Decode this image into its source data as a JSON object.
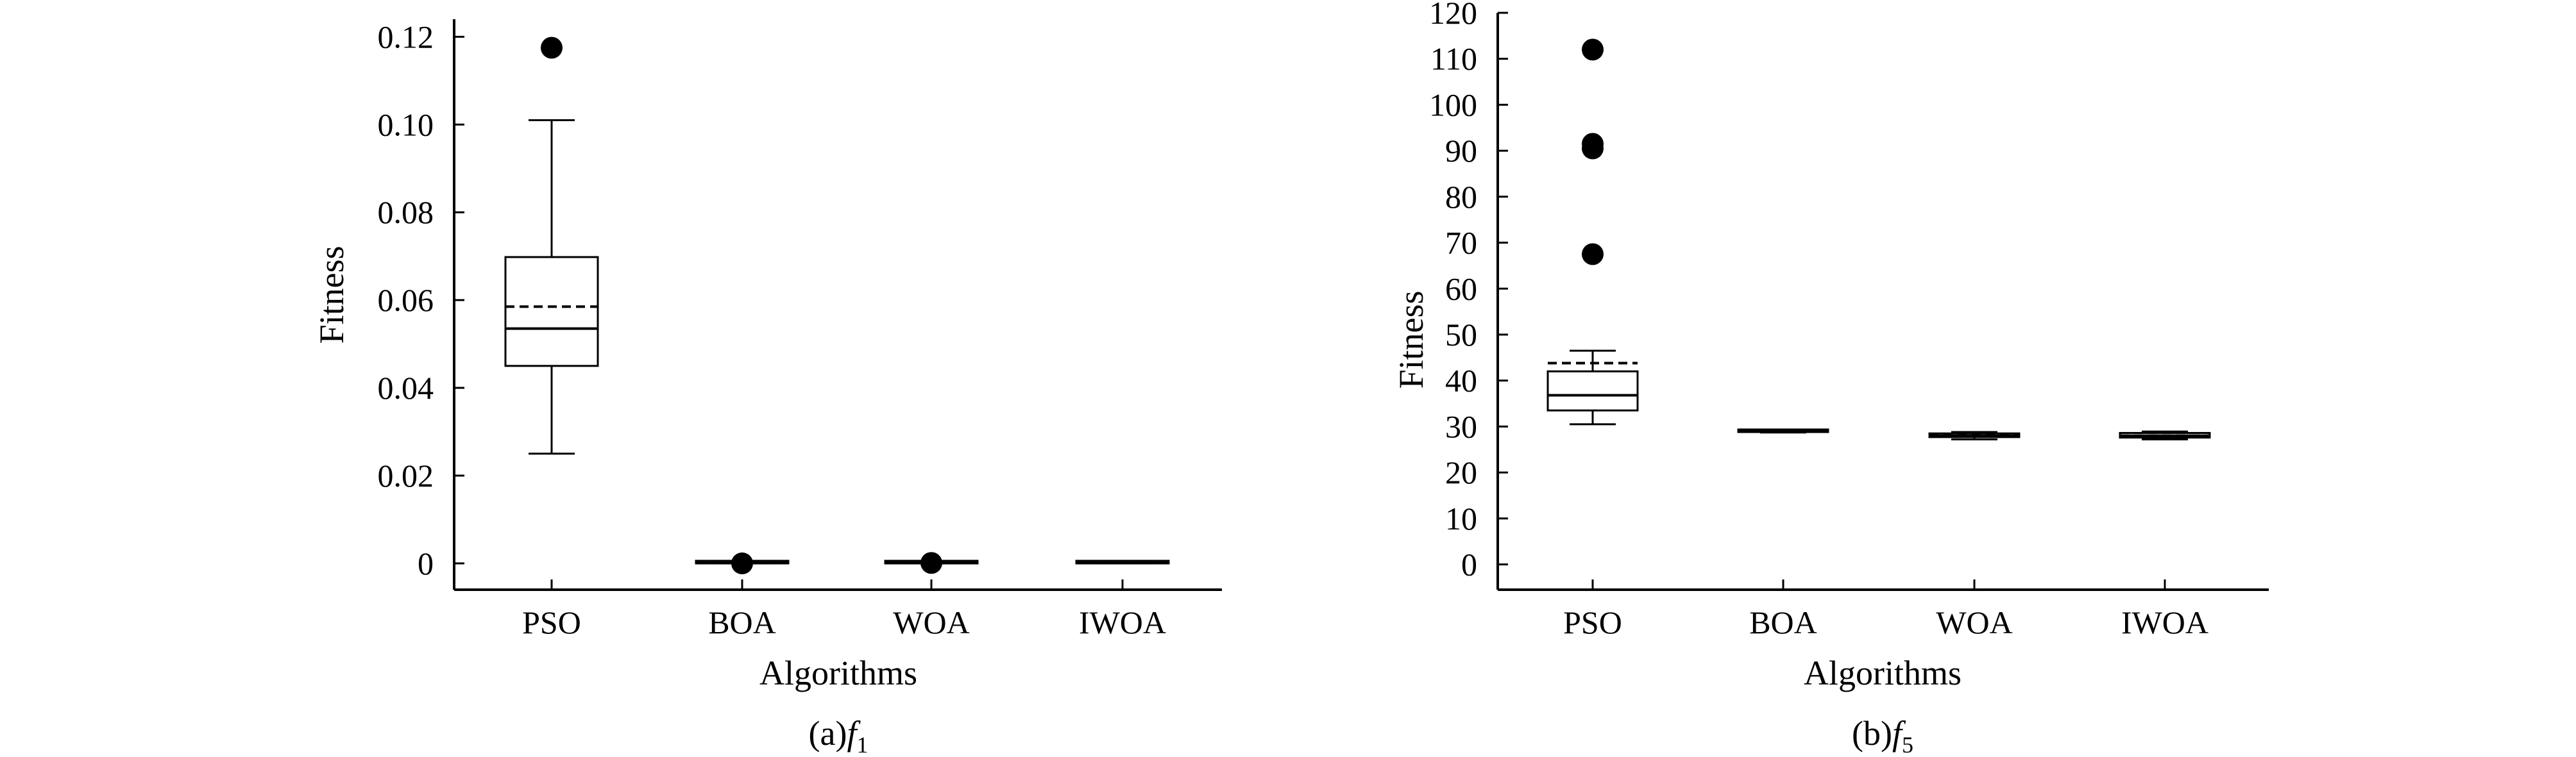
{
  "chart_data": [
    {
      "type": "box",
      "caption_prefix": "(a)",
      "caption_function": "f",
      "caption_subscript": "1",
      "xlabel": "Algorithms",
      "ylabel": "Fitness",
      "categories": [
        "PSO",
        "BOA",
        "WOA",
        "IWOA"
      ],
      "ylim": [
        -0.006,
        0.124
      ],
      "yticks": [
        0,
        0.02,
        0.04,
        0.06,
        0.08,
        0.1,
        0.12
      ],
      "ytick_labels": [
        "0",
        "0.02",
        "0.04",
        "0.06",
        "0.08",
        "0.10",
        "0.12"
      ],
      "boxes": [
        {
          "name": "PSO",
          "whisker_low": 0.025,
          "q1": 0.045,
          "median": 0.0535,
          "mean": 0.0585,
          "q3": 0.0698,
          "whisker_high": 0.101,
          "outliers": [
            0.1175
          ]
        },
        {
          "name": "BOA",
          "whisker_low": 0,
          "q1": 0,
          "median": 0.0001,
          "mean": 0.0001,
          "q3": 0.0002,
          "whisker_high": 0.0002,
          "outliers": [
            0
          ]
        },
        {
          "name": "WOA",
          "whisker_low": 0,
          "q1": 0,
          "median": 0.0001,
          "mean": 0.0001,
          "q3": 0.0002,
          "whisker_high": 0.0002,
          "outliers": [
            0.0001
          ]
        },
        {
          "name": "IWOA",
          "whisker_low": 0,
          "q1": 0,
          "median": 0.0001,
          "mean": 0.0001,
          "q3": 0.0001,
          "whisker_high": 0.0001,
          "outliers": []
        }
      ]
    },
    {
      "type": "box",
      "caption_prefix": "(b)",
      "caption_function": "f",
      "caption_subscript": "5",
      "xlabel": "Algorithms",
      "ylabel": "Fitness",
      "categories": [
        "PSO",
        "BOA",
        "WOA",
        "IWOA"
      ],
      "ylim": [
        -5.5,
        120
      ],
      "yticks": [
        0,
        10,
        20,
        30,
        40,
        50,
        60,
        70,
        80,
        90,
        100,
        110,
        120
      ],
      "ytick_labels": [
        "0",
        "10",
        "20",
        "30",
        "40",
        "50",
        "60",
        "70",
        "80",
        "90",
        "100",
        "110",
        "120"
      ],
      "boxes": [
        {
          "name": "PSO",
          "whisker_low": 30.5,
          "q1": 33.5,
          "median": 36.8,
          "mean": 43.8,
          "q3": 42.0,
          "whisker_high": 46.5,
          "outliers": [
            112,
            91.5,
            90.5,
            67.5
          ]
        },
        {
          "name": "BOA",
          "whisker_low": 28.7,
          "q1": 28.8,
          "median": 28.9,
          "mean": 28.9,
          "q3": 29.0,
          "whisker_high": 29.1,
          "outliers": []
        },
        {
          "name": "WOA",
          "whisker_low": 27.2,
          "q1": 27.7,
          "median": 28.0,
          "mean": 28.2,
          "q3": 28.5,
          "whisker_high": 28.8,
          "outliers": []
        },
        {
          "name": "IWOA",
          "whisker_low": 27.2,
          "q1": 27.6,
          "median": 28.0,
          "mean": 28.0,
          "q3": 28.6,
          "whisker_high": 28.9,
          "outliers": []
        }
      ]
    }
  ]
}
